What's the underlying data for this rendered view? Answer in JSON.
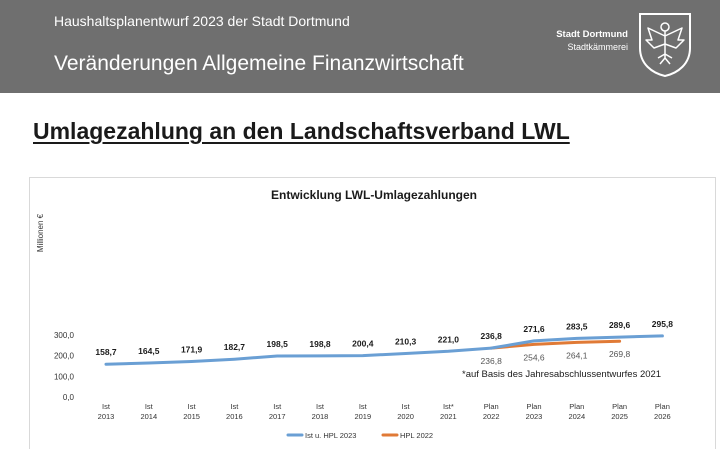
{
  "header": {
    "subtitle": "Haushaltsplanentwurf 2023 der Stadt Dortmund",
    "title": "Veränderungen Allgemeine Finanzwirtschaft",
    "brand_city": "Stadt Dortmund",
    "brand_dept": "Stadtkämmerei",
    "crest_icon": "eagle-crest-icon"
  },
  "page_heading": "Umlagezahlung an den Landschaftsverband LWL",
  "colors": {
    "header_bg": "#6f6f6f",
    "series_main": "#6a9fd4",
    "series_hpl2022": "#e07a36"
  },
  "chart_data": {
    "type": "line",
    "title": "Entwicklung LWL-Umlagezahlungen",
    "ylabel": "Millionen €",
    "xlabel": "",
    "ylim": [
      0,
      300
    ],
    "yticks": [
      0,
      100,
      200,
      300
    ],
    "ytick_labels": [
      "0,0",
      "100,0",
      "200,0",
      "300,0"
    ],
    "grid": false,
    "legend_position": "bottom",
    "categories": [
      [
        "Ist",
        "2013"
      ],
      [
        "Ist",
        "2014"
      ],
      [
        "Ist",
        "2015"
      ],
      [
        "Ist",
        "2016"
      ],
      [
        "Ist",
        "2017"
      ],
      [
        "Ist",
        "2018"
      ],
      [
        "Ist",
        "2019"
      ],
      [
        "Ist",
        "2020"
      ],
      [
        "Ist*",
        "2021"
      ],
      [
        "Plan",
        "2022"
      ],
      [
        "Plan",
        "2023"
      ],
      [
        "Plan",
        "2024"
      ],
      [
        "Plan",
        "2025"
      ],
      [
        "Plan",
        "2026"
      ]
    ],
    "series": [
      {
        "name": "Ist u. HPL 2023",
        "color": "#6a9fd4",
        "values": [
          158.7,
          164.5,
          171.9,
          182.7,
          198.5,
          198.8,
          200.4,
          210.3,
          221.0,
          236.8,
          271.6,
          283.5,
          289.6,
          295.8
        ],
        "labels": [
          "158,7",
          "164,5",
          "171,9",
          "182,7",
          "198,5",
          "198,8",
          "200,4",
          "210,3",
          "221,0",
          "236,8",
          "271,6",
          "283,5",
          "289,6",
          "295,8"
        ]
      },
      {
        "name": "HPL 2022",
        "color": "#e07a36",
        "values": [
          null,
          null,
          null,
          null,
          null,
          null,
          null,
          null,
          null,
          236.8,
          254.6,
          264.1,
          269.8,
          null
        ],
        "labels": [
          null,
          null,
          null,
          null,
          null,
          null,
          null,
          null,
          null,
          "236,8",
          "254,6",
          "264,1",
          "269,8",
          null
        ]
      }
    ],
    "annotation": "*auf Basis des Jahresabschlussentwurfes 2021"
  }
}
